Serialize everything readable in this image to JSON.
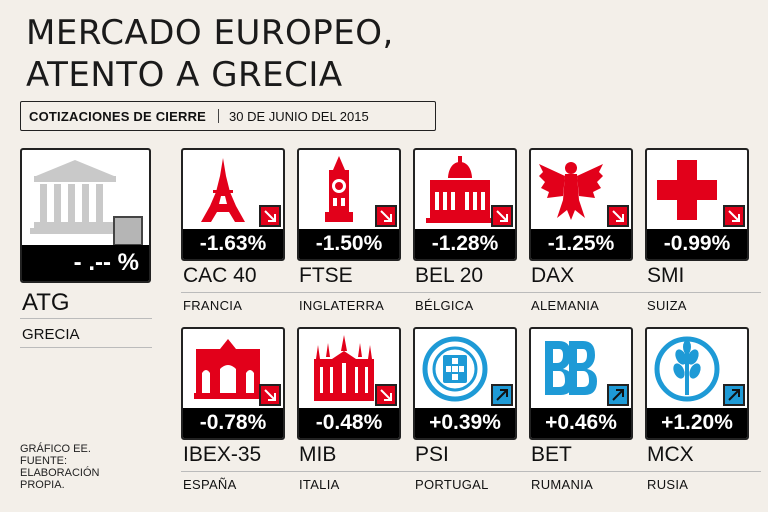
{
  "header": {
    "title_line1": "MERCADO EUROPEO,",
    "title_line2": "ATENTO A GRECIA",
    "subtitle_left": "COTIZACIONES DE CIERRE",
    "subtitle_right": "30 DE JUNIO DEL 2015"
  },
  "featured": {
    "index": "ATG",
    "country": "GRECIA",
    "change": "- .-- %",
    "direction": "flat",
    "icon": "greek-temple-icon"
  },
  "indices": [
    {
      "index": "CAC 40",
      "country": "FRANCIA",
      "change": "-1.63%",
      "direction": "down",
      "icon": "eiffel-tower-icon"
    },
    {
      "index": "FTSE",
      "country": "INGLATERRA",
      "change": "-1.50%",
      "direction": "down",
      "icon": "big-ben-icon"
    },
    {
      "index": "BEL 20",
      "country": "BÉLGICA",
      "change": "-1.28%",
      "direction": "down",
      "icon": "palace-icon"
    },
    {
      "index": "DAX",
      "country": "ALEMANIA",
      "change": "-1.25%",
      "direction": "down",
      "icon": "eagle-icon"
    },
    {
      "index": "SMI",
      "country": "SUIZA",
      "change": "-0.99%",
      "direction": "down",
      "icon": "swiss-cross-icon"
    },
    {
      "index": "IBEX-35",
      "country": "ESPAÑA",
      "change": "-0.78%",
      "direction": "down",
      "icon": "puerta-alcala-icon"
    },
    {
      "index": "MIB",
      "country": "ITALIA",
      "change": "-0.48%",
      "direction": "down",
      "icon": "milan-cathedral-icon"
    },
    {
      "index": "PSI",
      "country": "PORTUGAL",
      "change": "+0.39%",
      "direction": "up",
      "icon": "portugal-emblem-icon"
    },
    {
      "index": "BET",
      "country": "RUMANIA",
      "change": "+0.46%",
      "direction": "up",
      "icon": "bet-logo-icon"
    },
    {
      "index": "MCX",
      "country": "RUSIA",
      "change": "+1.20%",
      "direction": "up",
      "icon": "wheat-emblem-icon"
    }
  ],
  "credit": {
    "line1": "GRÁFICO EE.",
    "line2": "FUENTE:",
    "line3": "ELABORACIÓN",
    "line4": "PROPIA."
  },
  "colors": {
    "down": "#e2001a",
    "up": "#1e9ad6",
    "flat": "#b5b5b5",
    "background": "#f3efe9"
  }
}
